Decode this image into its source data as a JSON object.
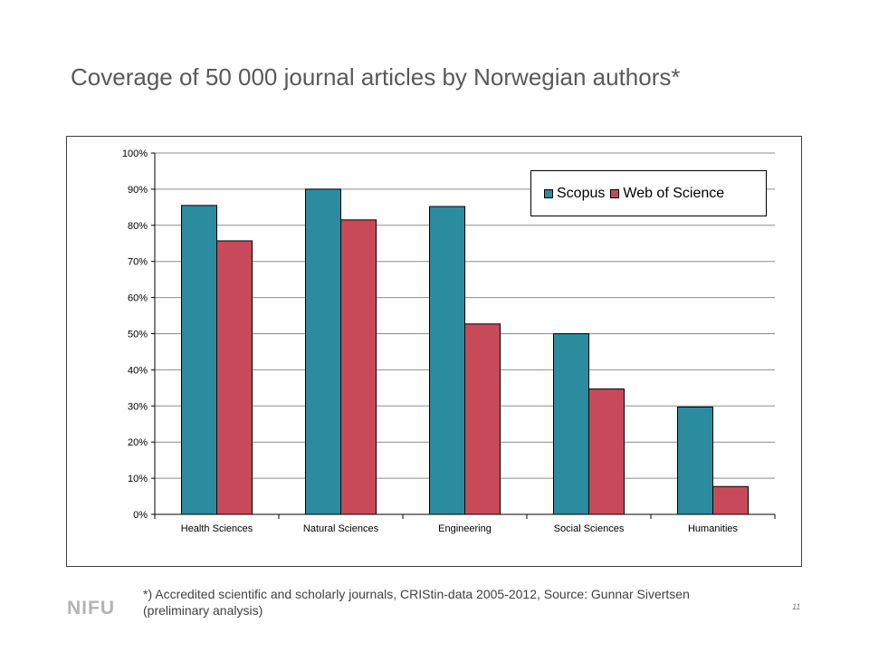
{
  "slide": {
    "title": "Coverage of 50 000 journal articles by Norwegian authors*",
    "footnote": "*) Accredited scientific and scholarly journals, CRIStin-data 2005-2012, Source: Gunnar Sivertsen (preliminary analysis)",
    "logo_text": "NIFU",
    "page_number": "11"
  },
  "chart_data": {
    "type": "bar",
    "title": "",
    "xlabel": "",
    "ylabel": "",
    "categories": [
      "Health Sciences",
      "Natural Sciences",
      "Engineering",
      "Social Sciences",
      "Humanities"
    ],
    "series": [
      {
        "name": "Scopus",
        "color": "#2b8b9f",
        "values": [
          85.5,
          90,
          85.2,
          50,
          29.7
        ]
      },
      {
        "name": "Web of Science",
        "color": "#c84a5a",
        "values": [
          75.7,
          81.5,
          52.7,
          34.7,
          7.7
        ]
      }
    ],
    "ylim": [
      0,
      100
    ],
    "y_ticks": [
      0,
      10,
      20,
      30,
      40,
      50,
      60,
      70,
      80,
      90,
      100
    ],
    "y_tick_labels": [
      "0%",
      "10%",
      "20%",
      "30%",
      "40%",
      "50%",
      "60%",
      "70%",
      "80%",
      "90%",
      "100%"
    ],
    "grid": true,
    "legend_position": "top-right"
  }
}
